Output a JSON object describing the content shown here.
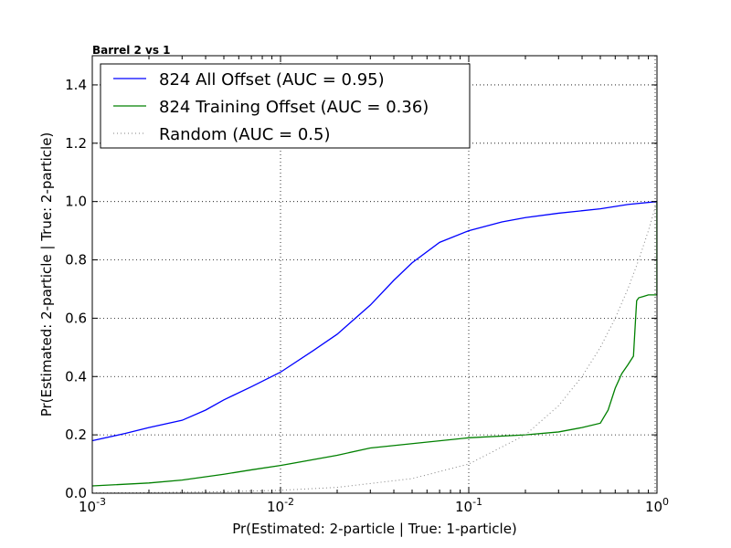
{
  "chart_data": {
    "type": "line",
    "title": "Barrel 2 vs 1",
    "xlabel": "Pr(Estimated: 2-particle | True: 1-particle)",
    "ylabel": "Pr(Estimated: 2-particle | True: 2-particle)",
    "xscale": "log",
    "xlim": [
      0.001,
      1
    ],
    "ylim": [
      0.0,
      1.5
    ],
    "grid": true,
    "legend_position": "top-left",
    "x_tick_labels": [
      {
        "value": 0.001,
        "base": "10",
        "exp": "-3"
      },
      {
        "value": 0.01,
        "base": "10",
        "exp": "-2"
      },
      {
        "value": 0.1,
        "base": "10",
        "exp": "-1"
      },
      {
        "value": 1,
        "base": "10",
        "exp": "0"
      }
    ],
    "y_tick_labels": [
      "0.0",
      "0.2",
      "0.4",
      "0.6",
      "0.8",
      "1.0",
      "1.2",
      "1.4"
    ],
    "y_tick_values": [
      0.0,
      0.2,
      0.4,
      0.6,
      0.8,
      1.0,
      1.2,
      1.4
    ],
    "series": [
      {
        "name": "824 All Offset (AUC = 0.95)",
        "color": "#0000ff",
        "style": "solid",
        "x": [
          0.001,
          0.0015,
          0.002,
          0.003,
          0.004,
          0.005,
          0.007,
          0.01,
          0.015,
          0.02,
          0.03,
          0.04,
          0.05,
          0.07,
          0.1,
          0.15,
          0.2,
          0.3,
          0.5,
          0.7,
          1.0
        ],
        "y": [
          0.18,
          0.205,
          0.225,
          0.25,
          0.285,
          0.32,
          0.365,
          0.415,
          0.49,
          0.545,
          0.645,
          0.73,
          0.79,
          0.86,
          0.9,
          0.93,
          0.945,
          0.96,
          0.975,
          0.99,
          1.0
        ]
      },
      {
        "name": "824 Training Offset (AUC = 0.36)",
        "color": "#008000",
        "style": "solid",
        "x": [
          0.001,
          0.002,
          0.003,
          0.005,
          0.007,
          0.01,
          0.02,
          0.03,
          0.05,
          0.1,
          0.2,
          0.3,
          0.4,
          0.5,
          0.55,
          0.6,
          0.65,
          0.7,
          0.75,
          0.77,
          0.78,
          0.8,
          0.85,
          0.9,
          0.95,
          0.999,
          0.999,
          1.0
        ],
        "y": [
          0.025,
          0.035,
          0.045,
          0.065,
          0.08,
          0.095,
          0.13,
          0.155,
          0.17,
          0.19,
          0.2,
          0.21,
          0.225,
          0.24,
          0.285,
          0.36,
          0.41,
          0.44,
          0.47,
          0.6,
          0.66,
          0.67,
          0.675,
          0.68,
          0.68,
          0.68,
          1.0,
          1.0
        ]
      },
      {
        "name": "Random (AUC = 0.5)",
        "color": "#808080",
        "style": "dotted",
        "x": [
          0.001,
          0.002,
          0.005,
          0.01,
          0.02,
          0.05,
          0.1,
          0.2,
          0.3,
          0.4,
          0.5,
          0.6,
          0.7,
          0.8,
          0.9,
          1.0
        ],
        "y": [
          0.001,
          0.002,
          0.005,
          0.01,
          0.02,
          0.05,
          0.1,
          0.2,
          0.3,
          0.4,
          0.5,
          0.6,
          0.7,
          0.8,
          0.9,
          1.0
        ]
      }
    ]
  }
}
